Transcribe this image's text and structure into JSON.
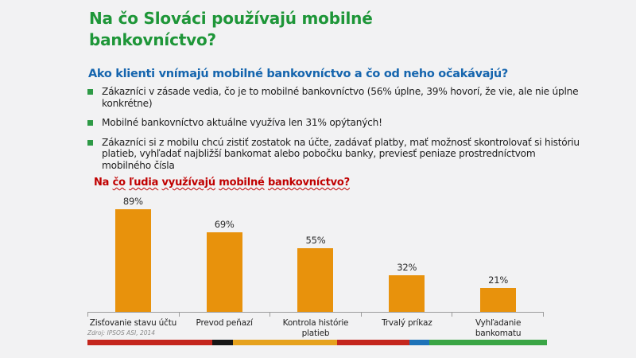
{
  "slide": {
    "title": "Na čo Slováci používajú mobilné bankovníctvo?",
    "subtitle": "Ako klienti vnímajú mobilné bankovníctvo a čo od neho očakávajú?",
    "bullets": [
      "Zákazníci v zásade vedia, čo je to mobilné bankovníctvo (56% úplne, 39% hovorí, že vie, ale nie úplne konkrétne)",
      "Mobilné bankovníctvo aktuálne využíva len 31% opýtaných!",
      "Zákazníci si z mobilu chcú zistiť zostatok na účte, zadávať platby, mať možnosť skontrolovať si históriu platieb, vyhľadať najbližší bankomat alebo pobočku banky, previesť peniaze prostredníctvom mobilného čísla"
    ],
    "source": "Zdroj: IPSOS ASI, 2014"
  },
  "chart_data": {
    "type": "bar",
    "title": "Na čo ľudia využívajú mobilné bankovníctvo?",
    "title_words": [
      {
        "t": "Na",
        "wavy_underline": false
      },
      {
        "t": "čo",
        "wavy_underline": true
      },
      {
        "t": "ľudia",
        "wavy_underline": true
      },
      {
        "t": "využívajú",
        "wavy_underline": true
      },
      {
        "t": "mobilné",
        "wavy_underline": true
      },
      {
        "t": "bankovníctvo?",
        "wavy_underline": true
      }
    ],
    "categories": [
      "Zisťovanie stavu účtu",
      "Prevod peňazí",
      "Kontrola histórie platieb",
      "Trvalý príkaz",
      "Vyhľadanie bankomatu"
    ],
    "categories_wrapped": [
      "Zisťovanie stavu účtu",
      "Prevod peňazí",
      "Kontrola histórie\nplatieb",
      "Trvalý príkaz",
      "Vyhľadanie\nbankomatu"
    ],
    "values": [
      89,
      69,
      55,
      32,
      21
    ],
    "value_labels": [
      "89%",
      "69%",
      "55%",
      "32%",
      "21%"
    ],
    "xlabel": "",
    "ylabel": "",
    "ylim": [
      0,
      100
    ],
    "grid": false,
    "legend": false,
    "bar_color": "#E8920C"
  },
  "colors": {
    "background": "#F2F2F3",
    "title_green": "#1E9638",
    "subtitle_blue": "#1565AE",
    "bullet_green": "#2E9A46",
    "chart_title_red": "#C00000",
    "bar_orange": "#E8920C",
    "axis_gray": "#9C9C9C",
    "source_gray": "#8A8A8A"
  },
  "footer_segments": [
    {
      "name": "red-1",
      "color": "#C4261D",
      "width_pct": 27.2
    },
    {
      "name": "black",
      "color": "#161616",
      "width_pct": 4.5
    },
    {
      "name": "orange",
      "color": "#E6A21E",
      "width_pct": 22.6
    },
    {
      "name": "red-2",
      "color": "#C4261D",
      "width_pct": 15.8
    },
    {
      "name": "blue",
      "color": "#1D72B8",
      "width_pct": 4.3
    },
    {
      "name": "green",
      "color": "#3AA545",
      "width_pct": 25.6
    }
  ]
}
